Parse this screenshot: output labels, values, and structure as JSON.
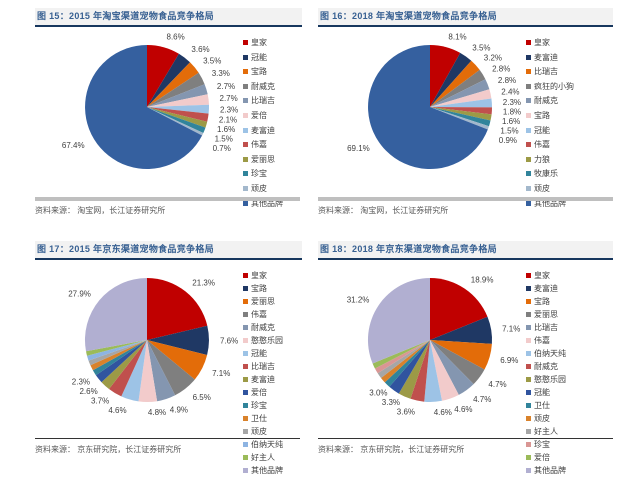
{
  "figure_colors": {
    "background": "#FFFFFF",
    "title_text": "#376092",
    "title_bar_bg": "#F2F2F2",
    "title_underline": "#17375E",
    "data_label_text": "#404040",
    "legend_text": "#404040",
    "source_text": "#595959",
    "divider_top_panels": "#BFBFBF",
    "divider_bottom_panels": "#333333"
  },
  "chart_data": [
    {
      "id": "fig-15",
      "type": "pie",
      "title": "图 15：2015 年淘宝渠道宠物食品竞争格局",
      "source": "资料来源： 淘宝网，长江证券研究所",
      "legend_position": "right",
      "series": [
        {
          "name": "皇家",
          "value": 8.6,
          "label": "8.6%",
          "color": "#C00000"
        },
        {
          "name": "冠能",
          "value": 3.6,
          "label": "3.6%",
          "color": "#1F3864"
        },
        {
          "name": "宝路",
          "value": 3.5,
          "label": "3.5%",
          "color": "#E36C09"
        },
        {
          "name": "耐威克",
          "value": 3.3,
          "label": "3.3%",
          "color": "#7F7F7F"
        },
        {
          "name": "比瑞吉",
          "value": 2.7,
          "label": "2.7%",
          "color": "#8496B0"
        },
        {
          "name": "爱倍",
          "value": 2.7,
          "label": "2.7%",
          "color": "#F2CBCB"
        },
        {
          "name": "麦富迪",
          "value": 2.3,
          "label": "2.3%",
          "color": "#9DC3E6"
        },
        {
          "name": "伟嘉",
          "value": 2.1,
          "label": "2.1%",
          "color": "#C0504D"
        },
        {
          "name": "爱丽思",
          "value": 1.6,
          "label": "1.6%",
          "color": "#9C9A46"
        },
        {
          "name": "珍宝",
          "value": 1.5,
          "label": "1.5%",
          "color": "#31849B"
        },
        {
          "name": "顽皮",
          "value": 0.7,
          "label": "0.7%",
          "color": "#A3B8CC"
        },
        {
          "name": "其他品牌",
          "value": 67.4,
          "label": "67.4%",
          "color": "#35609F"
        }
      ]
    },
    {
      "id": "fig-16",
      "type": "pie",
      "title": "图 16：2018 年淘宝渠道宠物食品竞争格局",
      "source": "资料来源： 淘宝网，长江证券研究所",
      "legend_position": "right",
      "series": [
        {
          "name": "皇家",
          "value": 8.1,
          "label": "8.1%",
          "color": "#C00000"
        },
        {
          "name": "麦富迪",
          "value": 3.5,
          "label": "3.5%",
          "color": "#1F3864"
        },
        {
          "name": "比瑞吉",
          "value": 3.2,
          "label": "3.2%",
          "color": "#E36C09"
        },
        {
          "name": "疯狂的小狗",
          "value": 2.8,
          "label": "2.8%",
          "color": "#7F7F7F"
        },
        {
          "name": "耐威克",
          "value": 2.8,
          "label": "2.8%",
          "color": "#8496B0"
        },
        {
          "name": "宝路",
          "value": 2.4,
          "label": "2.4%",
          "color": "#F2CBCB"
        },
        {
          "name": "冠能",
          "value": 2.3,
          "label": "2.3%",
          "color": "#9DC3E6"
        },
        {
          "name": "伟嘉",
          "value": 1.8,
          "label": "1.8%",
          "color": "#C0504D"
        },
        {
          "name": "力狼",
          "value": 1.6,
          "label": "1.6%",
          "color": "#9C9A46"
        },
        {
          "name": "牧康乐",
          "value": 1.5,
          "label": "1.5%",
          "color": "#31849B"
        },
        {
          "name": "顽皮",
          "value": 0.9,
          "label": "0.9%",
          "color": "#A3B8CC"
        },
        {
          "name": "其他品牌",
          "value": 69.1,
          "label": "69.1%",
          "color": "#35609F"
        }
      ]
    },
    {
      "id": "fig-17",
      "type": "pie",
      "title": "图 17：2015 年京东渠道宠物食品竞争格局",
      "source": "资料来源： 京东研究院，长江证券研究所",
      "legend_position": "right",
      "series": [
        {
          "name": "皇家",
          "value": 21.3,
          "label": "21.3%",
          "color": "#C00000"
        },
        {
          "name": "宝路",
          "value": 7.6,
          "label": "7.6%",
          "color": "#1F3864"
        },
        {
          "name": "爱丽思",
          "value": 7.1,
          "label": "7.1%",
          "color": "#E36C09"
        },
        {
          "name": "伟嘉",
          "value": 6.5,
          "label": "6.5%",
          "color": "#7F7F7F"
        },
        {
          "name": "耐威克",
          "value": 4.9,
          "label": "4.9%",
          "color": "#8496B0"
        },
        {
          "name": "憨憨乐园",
          "value": 4.8,
          "label": "4.8%",
          "color": "#F2CBCB"
        },
        {
          "name": "冠能",
          "value": 4.6,
          "label": "4.6%",
          "color": "#9DC3E6"
        },
        {
          "name": "比瑞吉",
          "value": 3.7,
          "label": "3.7%",
          "color": "#C0504D"
        },
        {
          "name": "麦富迪",
          "value": 2.6,
          "label": "2.6%",
          "color": "#9C9A46"
        },
        {
          "name": "爱倍",
          "value": 2.3,
          "label": "2.3%",
          "color": "#30549F"
        },
        {
          "name": "珍宝",
          "value": 1.5,
          "label": "",
          "value_estimated": true,
          "color": "#31849B"
        },
        {
          "name": "卫仕",
          "value": 1.4,
          "label": "",
          "value_estimated": true,
          "color": "#D9822B"
        },
        {
          "name": "顽皮",
          "value": 1.3,
          "label": "",
          "value_estimated": true,
          "color": "#A6A6A6"
        },
        {
          "name": "伯纳天纯",
          "value": 1.3,
          "label": "",
          "value_estimated": true,
          "color": "#8DB4E2"
        },
        {
          "name": "好主人",
          "value": 1.2,
          "label": "",
          "value_estimated": true,
          "color": "#9BBB59"
        },
        {
          "name": "其他品牌",
          "value": 27.9,
          "label": "27.9%",
          "color": "#B1AFD1"
        }
      ]
    },
    {
      "id": "fig-18",
      "type": "pie",
      "title": "图 18：2018 年京东渠道宠物食品竞争格局",
      "source": "资料来源： 京东研究院，长江证券研究所",
      "legend_position": "right",
      "series": [
        {
          "name": "皇家",
          "value": 18.9,
          "label": "18.9%",
          "color": "#C00000"
        },
        {
          "name": "麦富迪",
          "value": 7.1,
          "label": "7.1%",
          "color": "#1F3864"
        },
        {
          "name": "宝路",
          "value": 6.9,
          "label": "6.9%",
          "color": "#E36C09"
        },
        {
          "name": "爱丽思",
          "value": 4.7,
          "label": "4.7%",
          "color": "#7F7F7F"
        },
        {
          "name": "比瑞吉",
          "value": 4.7,
          "label": "4.7%",
          "color": "#8496B0"
        },
        {
          "name": "伟嘉",
          "value": 4.6,
          "label": "4.6%",
          "color": "#F2CBCB"
        },
        {
          "name": "伯纳天纯",
          "value": 4.6,
          "label": "4.6%",
          "color": "#9DC3E6"
        },
        {
          "name": "耐威克",
          "value": 3.6,
          "label": "3.6%",
          "color": "#C0504D"
        },
        {
          "name": "憨憨乐园",
          "value": 3.3,
          "label": "3.3%",
          "color": "#9C9A46"
        },
        {
          "name": "冠能",
          "value": 3.0,
          "label": "3.0%",
          "color": "#30549F"
        },
        {
          "name": "卫仕",
          "value": 1.6,
          "label": "",
          "value_estimated": true,
          "color": "#31849B"
        },
        {
          "name": "顽皮",
          "value": 1.5,
          "label": "",
          "value_estimated": true,
          "color": "#D9822B"
        },
        {
          "name": "好主人",
          "value": 1.5,
          "label": "",
          "value_estimated": true,
          "color": "#A6A6A6"
        },
        {
          "name": "珍宝",
          "value": 1.4,
          "label": "",
          "value_estimated": true,
          "color": "#D99694"
        },
        {
          "name": "爱倍",
          "value": 1.4,
          "label": "",
          "value_estimated": true,
          "color": "#9BBB59"
        },
        {
          "name": "其他品牌",
          "value": 31.2,
          "label": "31.2%",
          "color": "#B1AFD1"
        }
      ]
    }
  ]
}
